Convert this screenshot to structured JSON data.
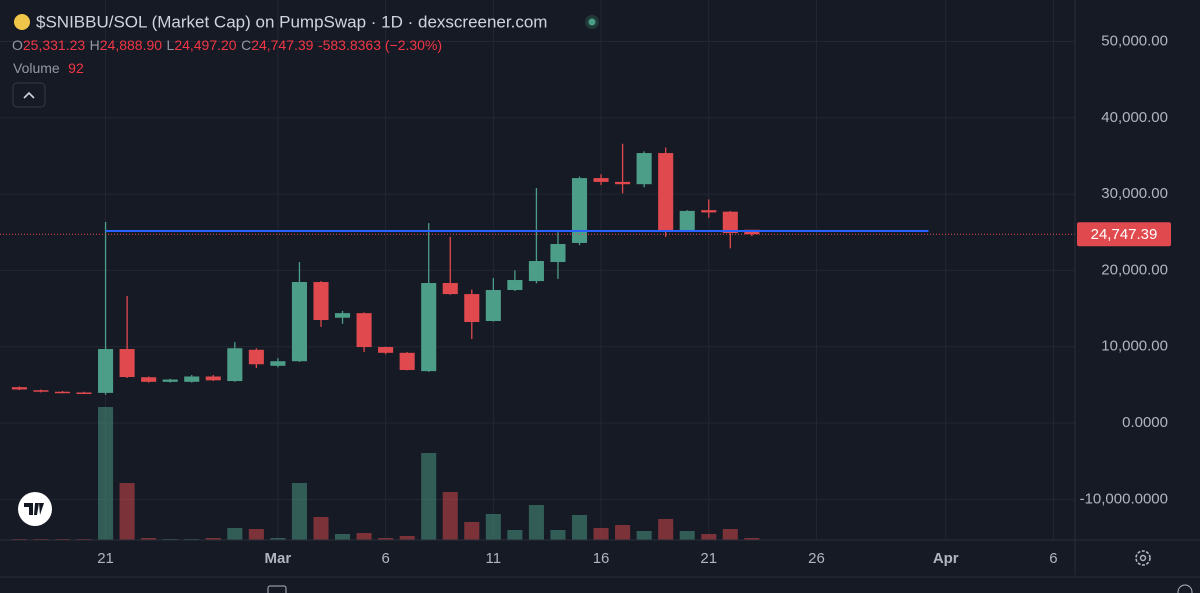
{
  "chart_data": {
    "type": "candlestick",
    "title": "$SNIBBU/SOL (Market Cap) on PumpSwap · 1D · dexscreener.com",
    "legend": {
      "open_label": "O",
      "open": "25,331.23",
      "high_label": "H",
      "high": "24,888.90",
      "low_label": "L",
      "low": "24,497.20",
      "close_label": "C",
      "close": "24,747.39",
      "change": "-583.8363 (−2.30%)"
    },
    "volume_label": "Volume",
    "volume_value": "92",
    "up_color": "#4d9e88",
    "down_color": "#e0494e",
    "open": [
      4700,
      4300,
      4100,
      4000,
      3950,
      9700,
      6000,
      5400,
      5400,
      6100,
      5500,
      9600,
      7500,
      8100,
      18480,
      13800,
      14400,
      9960,
      9200,
      6800,
      18350,
      16900,
      13370,
      17430,
      18600,
      21100,
      23600,
      32100,
      31600,
      31300,
      35380,
      25300,
      27900,
      27700,
      25331.23
    ],
    "high": [
      4800,
      4400,
      4200,
      4100,
      26343,
      16645,
      6100,
      5800,
      6300,
      6300,
      10600,
      9800,
      8500,
      21100,
      18600,
      14700,
      14500,
      10000,
      9300,
      26200,
      24400,
      17500,
      19000,
      20000,
      30800,
      25000,
      32300,
      32600,
      36600,
      35600,
      36100,
      27900,
      29300,
      27800,
      24888.9
    ],
    "low": [
      4300,
      4000,
      3900,
      3800,
      3700,
      5900,
      5300,
      5300,
      5300,
      5500,
      5400,
      7200,
      7300,
      8000,
      12600,
      13000,
      9300,
      9000,
      6900,
      6700,
      16800,
      11000,
      13300,
      17300,
      18300,
      18900,
      23300,
      31200,
      30100,
      30900,
      24400,
      25100,
      26900,
      22900,
      24497.2
    ],
    "close": [
      4400,
      4100,
      4000,
      3950,
      9700,
      6030,
      5400,
      5700,
      6100,
      5600,
      9800,
      7700,
      8100,
      18480,
      13500,
      14400,
      9960,
      9200,
      6950,
      18350,
      16900,
      13240,
      17430,
      18740,
      21230,
      23460,
      32100,
      31600,
      31300,
      35380,
      25300,
      27800,
      27600,
      24900,
      24747.39
    ],
    "volume": [
      1,
      1,
      1,
      1,
      133,
      57,
      2,
      1,
      1,
      2,
      12,
      11,
      2,
      57,
      23,
      6,
      7,
      2,
      4,
      87,
      48,
      18,
      26,
      10,
      35,
      10,
      25,
      12,
      15,
      9,
      21,
      9,
      6,
      11,
      2
    ],
    "xlim": [
      -0.9,
      49
    ],
    "xticks": [
      {
        "value": 4,
        "label": "21"
      },
      {
        "value": 12,
        "label": "Mar"
      },
      {
        "value": 17,
        "label": "6"
      },
      {
        "value": 22,
        "label": "11"
      },
      {
        "value": 27,
        "label": "16"
      },
      {
        "value": 32,
        "label": "21"
      },
      {
        "value": 37,
        "label": "26"
      },
      {
        "value": 43,
        "label": "Apr"
      },
      {
        "value": 48,
        "label": "6"
      }
    ],
    "ylim": [
      -15330,
      55440
    ],
    "yticks": [
      {
        "value": 50000,
        "label": "50,000.00"
      },
      {
        "value": 40000,
        "label": "40,000.00"
      },
      {
        "value": 30000,
        "label": "30,000.00"
      },
      {
        "value": 20000,
        "label": "20,000.00"
      },
      {
        "value": 10000,
        "label": "10,000.00"
      },
      {
        "value": 0,
        "label": "0.0000"
      },
      {
        "value": -10000,
        "label": "-10,000.0000"
      }
    ],
    "grid": true,
    "price_line": {
      "value": 25160,
      "start": 4,
      "end": 42.2,
      "color": "#2962ff"
    }
  }
}
